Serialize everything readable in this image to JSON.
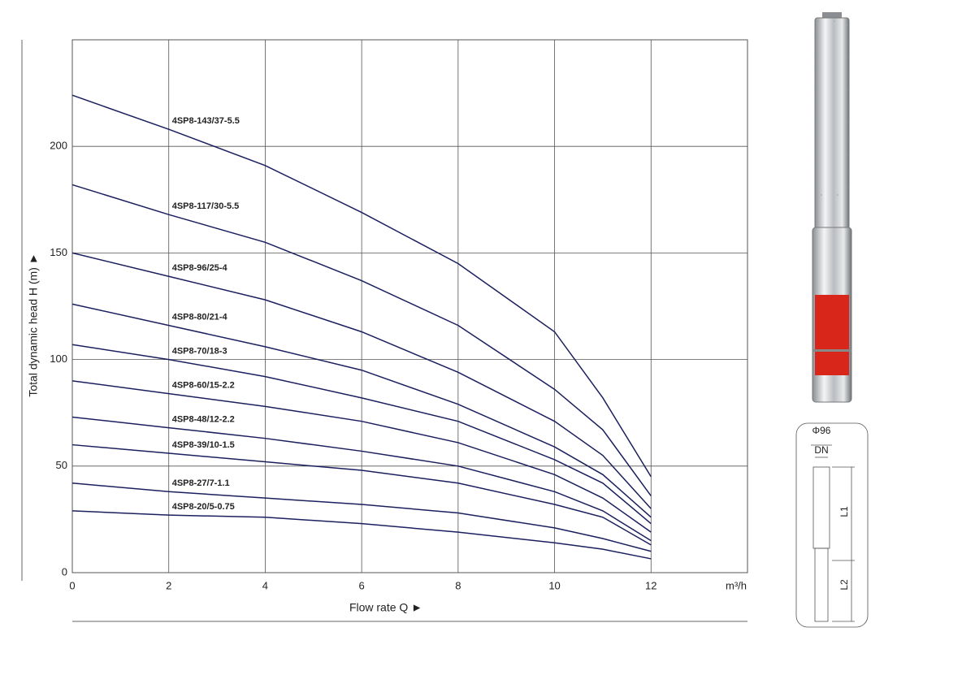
{
  "chart_data": {
    "type": "line",
    "x_label": "Flow rate Q ►",
    "y_label": "Total dynamic head H (m) ►",
    "x_unit": "m³/h",
    "x": [
      0,
      2,
      4,
      6,
      8,
      10,
      11,
      12
    ],
    "xlim": [
      0,
      14
    ],
    "xticks": [
      0,
      2,
      4,
      6,
      8,
      10,
      12
    ],
    "ylim": [
      0,
      250
    ],
    "yticks": [
      0,
      50,
      100,
      150,
      200
    ],
    "grid": true,
    "series": [
      {
        "name": "4SP8-143/37-5.5",
        "color": "#1b1f5e",
        "values": [
          224,
          208,
          191,
          169,
          145,
          113,
          82,
          45
        ]
      },
      {
        "name": "4SP8-117/30-5.5",
        "color": "#1b1f5e",
        "values": [
          182,
          168,
          155,
          137,
          116,
          86,
          67,
          36
        ]
      },
      {
        "name": "4SP8-96/25-4",
        "color": "#1b1f5e",
        "values": [
          150,
          139,
          128,
          113,
          94,
          71,
          55,
          30
        ]
      },
      {
        "name": "4SP8-80/21-4",
        "color": "#1b1f5e",
        "values": [
          126,
          116,
          106,
          95,
          79,
          59,
          46,
          26
        ]
      },
      {
        "name": "4SP8-70/18-3",
        "color": "#1b1f5e",
        "values": [
          107,
          100,
          92,
          82,
          71,
          53,
          42,
          23
        ]
      },
      {
        "name": "4SP8-60/15-2.2",
        "color": "#1b1f5e",
        "values": [
          90,
          84,
          78,
          71,
          61,
          46,
          35,
          19
        ]
      },
      {
        "name": "4SP8-48/12-2.2",
        "color": "#1b1f5e",
        "values": [
          73,
          68,
          63,
          57,
          50,
          38,
          29,
          15
        ]
      },
      {
        "name": "4SP8-39/10-1.5",
        "color": "#1b1f5e",
        "values": [
          60,
          56,
          52,
          48,
          42,
          32,
          26,
          13
        ]
      },
      {
        "name": "4SP8-27/7-1.1",
        "color": "#1b1f5e",
        "values": [
          42,
          38,
          35,
          32,
          28,
          21,
          16,
          10
        ]
      },
      {
        "name": "4SP8-20/5-0.75",
        "color": "#1b1f5e",
        "values": [
          29,
          27,
          26,
          23,
          19,
          14,
          11,
          6.5
        ]
      }
    ]
  },
  "dimension_labels": {
    "diameter": "Φ96",
    "dn": "DN",
    "l1": "L1",
    "l2": "L2"
  }
}
